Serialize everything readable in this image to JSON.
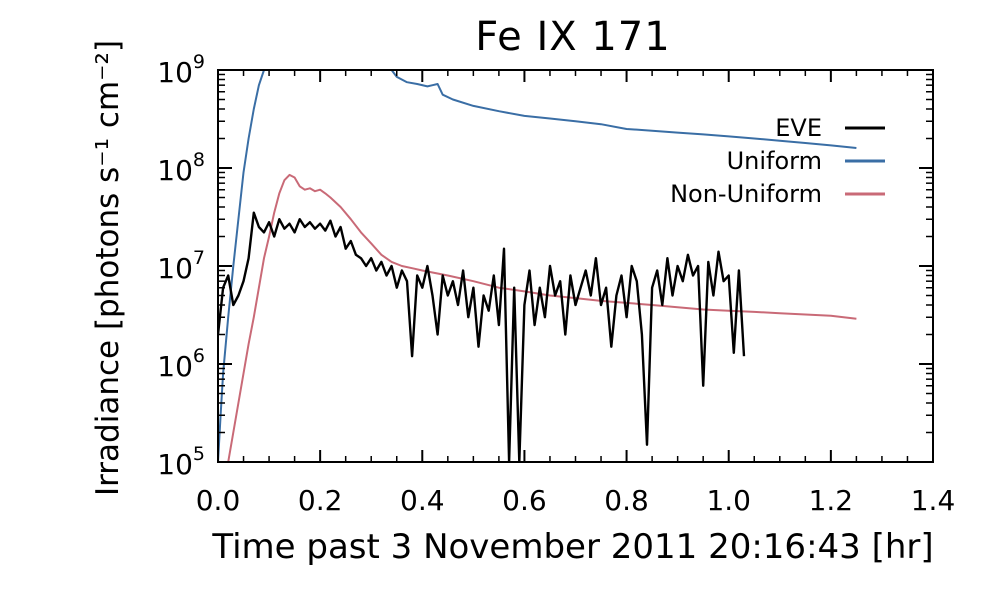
{
  "chart_data": {
    "type": "line",
    "title": "Fe IX 171",
    "xlabel": "Time past 3 November 2011 20:16:43 [hr]",
    "ylabel": "Irradiance [photons s⁻¹ cm⁻²]",
    "xlim": [
      0.0,
      1.4
    ],
    "ylim": [
      100000,
      1000000000
    ],
    "yscale": "log",
    "xticks": [
      0.0,
      0.2,
      0.4,
      0.6,
      0.8,
      1.0,
      1.2,
      1.4
    ],
    "xtick_labels": [
      "0.0",
      "0.2",
      "0.4",
      "0.6",
      "0.8",
      "1.0",
      "1.2",
      "1.4"
    ],
    "yticks": [
      {
        "value": 100000,
        "base": "10",
        "exp": "5"
      },
      {
        "value": 1000000,
        "base": "10",
        "exp": "6"
      },
      {
        "value": 10000000,
        "base": "10",
        "exp": "7"
      },
      {
        "value": 100000000,
        "base": "10",
        "exp": "8"
      },
      {
        "value": 1000000000,
        "base": "10",
        "exp": "9"
      }
    ],
    "legend_position": "top-right",
    "series": [
      {
        "name": "EVE",
        "color": "#000000",
        "x": [
          0.0,
          0.01,
          0.02,
          0.03,
          0.04,
          0.05,
          0.06,
          0.07,
          0.08,
          0.09,
          0.1,
          0.11,
          0.12,
          0.13,
          0.14,
          0.15,
          0.16,
          0.17,
          0.18,
          0.19,
          0.2,
          0.21,
          0.22,
          0.23,
          0.24,
          0.25,
          0.26,
          0.27,
          0.28,
          0.29,
          0.3,
          0.31,
          0.32,
          0.33,
          0.34,
          0.35,
          0.36,
          0.37,
          0.38,
          0.39,
          0.4,
          0.41,
          0.42,
          0.43,
          0.44,
          0.45,
          0.46,
          0.47,
          0.48,
          0.49,
          0.5,
          0.51,
          0.52,
          0.53,
          0.54,
          0.55,
          0.56,
          0.57,
          0.58,
          0.59,
          0.6,
          0.61,
          0.62,
          0.63,
          0.64,
          0.65,
          0.66,
          0.67,
          0.68,
          0.69,
          0.7,
          0.71,
          0.72,
          0.73,
          0.74,
          0.75,
          0.76,
          0.77,
          0.78,
          0.79,
          0.8,
          0.81,
          0.82,
          0.83,
          0.84,
          0.85,
          0.86,
          0.87,
          0.88,
          0.89,
          0.9,
          0.91,
          0.92,
          0.93,
          0.94,
          0.95,
          0.96,
          0.97,
          0.98,
          0.99,
          1.0,
          1.01,
          1.02,
          1.03
        ],
        "y": [
          2000000,
          6000000,
          8000000,
          4000000,
          5000000,
          7000000,
          12000000,
          35000000,
          25000000,
          22000000,
          28000000,
          20000000,
          30000000,
          24000000,
          27000000,
          22000000,
          30000000,
          25000000,
          28000000,
          24000000,
          27000000,
          23000000,
          29000000,
          20000000,
          25000000,
          15000000,
          18000000,
          13000000,
          12000000,
          10000000,
          12000000,
          9000000,
          11000000,
          8000000,
          10000000,
          6000000,
          9000000,
          7000000,
          1200000,
          8000000,
          6000000,
          10000000,
          5000000,
          2000000,
          8000000,
          5000000,
          7000000,
          4000000,
          9000000,
          3000000,
          6000000,
          1500000,
          5000000,
          3500000,
          8000000,
          2500000,
          15000000,
          100000,
          6000000,
          100000,
          4000000,
          9000000,
          2500000,
          6000000,
          3000000,
          10000000,
          5000000,
          7000000,
          2000000,
          8000000,
          4000000,
          6000000,
          9000000,
          5000000,
          12000000,
          4000000,
          6000000,
          1500000,
          5000000,
          8000000,
          3000000,
          10000000,
          7000000,
          2000000,
          150000,
          6000000,
          9000000,
          4000000,
          12000000,
          5000000,
          10000000,
          7000000,
          13000000,
          8000000,
          10000000,
          600000,
          11000000,
          5000000,
          14000000,
          7000000,
          8000000,
          1300000,
          9000000,
          1200000
        ]
      },
      {
        "name": "Uniform",
        "color": "#3a6ea5",
        "x": [
          0.0,
          0.005,
          0.01,
          0.02,
          0.03,
          0.04,
          0.05,
          0.06,
          0.07,
          0.08,
          0.09,
          0.34,
          0.35,
          0.37,
          0.39,
          0.41,
          0.42,
          0.43,
          0.44,
          0.46,
          0.5,
          0.55,
          0.6,
          0.65,
          0.7,
          0.75,
          0.8,
          0.85,
          0.9,
          0.95,
          1.0,
          1.05,
          1.1,
          1.15,
          1.2,
          1.25
        ],
        "y": [
          100000,
          300000,
          800000,
          3000000,
          10000000,
          30000000,
          90000000,
          200000000,
          400000000,
          700000000,
          1000000000,
          1000000000,
          850000000,
          750000000,
          720000000,
          680000000,
          700000000,
          720000000,
          560000000,
          500000000,
          430000000,
          380000000,
          340000000,
          320000000,
          300000000,
          280000000,
          250000000,
          240000000,
          230000000,
          220000000,
          210000000,
          200000000,
          190000000,
          180000000,
          170000000,
          160000000
        ]
      },
      {
        "name": "Non-Uniform",
        "color": "#c96a77",
        "x": [
          0.02,
          0.03,
          0.04,
          0.05,
          0.06,
          0.07,
          0.08,
          0.09,
          0.1,
          0.11,
          0.12,
          0.13,
          0.14,
          0.15,
          0.16,
          0.17,
          0.18,
          0.19,
          0.2,
          0.21,
          0.22,
          0.24,
          0.26,
          0.28,
          0.3,
          0.32,
          0.34,
          0.36,
          0.38,
          0.4,
          0.45,
          0.5,
          0.55,
          0.6,
          0.65,
          0.7,
          0.75,
          0.8,
          0.85,
          0.9,
          0.95,
          1.0,
          1.05,
          1.1,
          1.15,
          1.2,
          1.25
        ],
        "y": [
          100000,
          200000,
          400000,
          800000,
          1600000,
          3000000,
          6000000,
          12000000,
          20000000,
          35000000,
          55000000,
          75000000,
          85000000,
          80000000,
          65000000,
          60000000,
          62000000,
          58000000,
          60000000,
          55000000,
          50000000,
          40000000,
          30000000,
          22000000,
          17000000,
          13000000,
          11000000,
          10000000,
          9500000,
          9000000,
          8000000,
          7000000,
          6000000,
          5500000,
          5000000,
          4700000,
          4400000,
          4200000,
          4000000,
          3800000,
          3600000,
          3500000,
          3400000,
          3300000,
          3200000,
          3100000,
          2900000
        ]
      }
    ]
  }
}
